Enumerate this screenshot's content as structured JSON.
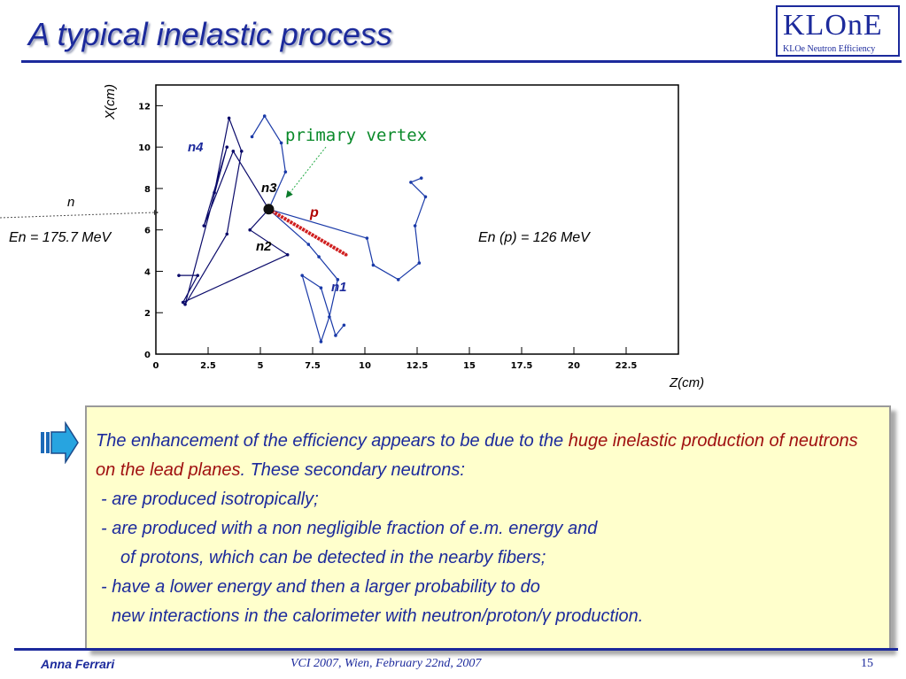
{
  "header": {
    "title": "A typical inelastic process",
    "logo_text": "KLOnE",
    "logo_subtitle": "KLOe Neutron Efficiency"
  },
  "figure": {
    "incoming_label": "n",
    "incoming_energy": "En = 175.7 MeV",
    "proton_energy": "En (p) = 126 MeV",
    "primary_vertex_label": "primary vertex",
    "track_labels": {
      "n1": "n1",
      "n2": "n2",
      "n3": "n3",
      "n4": "n4",
      "p": "p"
    }
  },
  "chart_data": {
    "type": "scatter",
    "title": "",
    "xlabel": "Z(cm)",
    "ylabel": "X(cm)",
    "xlim": [
      0,
      25
    ],
    "ylim": [
      0,
      13
    ],
    "x_ticks": [
      "0",
      "2.5",
      "5",
      "7.5",
      "10",
      "12.5",
      "15",
      "17.5",
      "20",
      "22.5"
    ],
    "y_ticks": [
      "0",
      "2",
      "4",
      "6",
      "8",
      "10",
      "12"
    ],
    "vertex": {
      "name": "primary vertex",
      "z": 5.4,
      "x": 7.0
    },
    "series": [
      {
        "name": "n4",
        "color": "#0a0a6a",
        "points": [
          [
            5.4,
            7.0
          ],
          [
            3.7,
            9.8
          ],
          [
            2.3,
            6.2
          ],
          [
            3.4,
            10.0
          ],
          [
            1.4,
            2.4
          ],
          [
            3.4,
            5.8
          ],
          [
            4.1,
            9.8
          ],
          [
            3.5,
            11.4
          ],
          [
            2.8,
            7.8
          ]
        ]
      },
      {
        "name": "n2",
        "color": "#0a0a6a",
        "points": [
          [
            5.4,
            7.0
          ],
          [
            4.5,
            6.0
          ],
          [
            6.3,
            4.8
          ],
          [
            1.3,
            2.5
          ],
          [
            2.0,
            3.8
          ],
          [
            1.1,
            3.8
          ]
        ]
      },
      {
        "name": "n1",
        "color": "#1a3aa8",
        "points": [
          [
            5.4,
            7.0
          ],
          [
            7.3,
            5.3
          ],
          [
            7.8,
            4.7
          ],
          [
            8.7,
            3.6
          ],
          [
            8.3,
            1.8
          ],
          [
            7.9,
            0.6
          ],
          [
            7.0,
            3.8
          ],
          [
            7.9,
            3.2
          ],
          [
            8.6,
            0.9
          ],
          [
            9.0,
            1.4
          ]
        ]
      },
      {
        "name": "n3",
        "color": "#1a3aa8",
        "points": [
          [
            5.4,
            7.0
          ],
          [
            10.1,
            5.6
          ],
          [
            10.4,
            4.3
          ],
          [
            11.6,
            3.6
          ],
          [
            12.6,
            4.4
          ],
          [
            12.4,
            6.2
          ],
          [
            12.9,
            7.6
          ],
          [
            12.2,
            8.3
          ],
          [
            12.7,
            8.5
          ]
        ]
      },
      {
        "name": "n3-background",
        "color": "#1a3aa8",
        "points": [
          [
            5.4,
            7.0
          ],
          [
            6.2,
            8.8
          ],
          [
            6.0,
            10.2
          ],
          [
            5.2,
            11.5
          ],
          [
            4.6,
            10.5
          ]
        ]
      },
      {
        "name": "p",
        "color": "#d02020",
        "points": [
          [
            5.4,
            7.0
          ],
          [
            9.1,
            4.8
          ]
        ]
      }
    ],
    "annotations": [
      "primary vertex",
      "En = 175.7 MeV",
      "En (p) = 126 MeV"
    ]
  },
  "body": {
    "text_part1": "The enhancement of the efficiency appears to be due to the ",
    "text_red": "huge inelastic production of neutrons on the lead planes",
    "text_part2": ". These secondary neutrons:",
    "bullets": [
      "- are produced isotropically;",
      "- are produced with a non negligible fraction of e.m. energy and",
      "of  protons, which can be detected in the nearby fibers;",
      "- have a lower energy and then a larger probability to do",
      "new interactions in the calorimeter with neutron/proton/γ production."
    ]
  },
  "footer": {
    "author": "Anna Ferrari",
    "event": "VCI 2007, Wien, February 22nd, 2007",
    "page": "15"
  }
}
